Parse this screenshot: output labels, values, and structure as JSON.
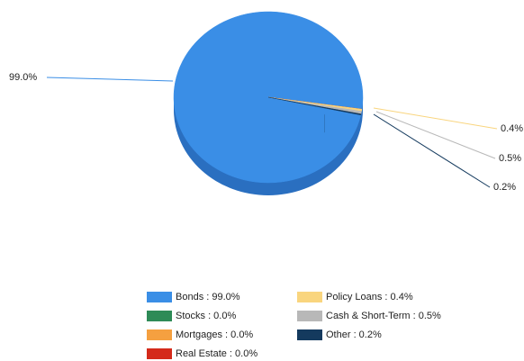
{
  "chart_data": {
    "type": "pie",
    "categories": [
      "Bonds : 99.0%",
      "Stocks : 0.0%",
      "Mortgages : 0.0%",
      "Real Estate : 0.0%",
      "Policy Loans : 0.4%",
      "Cash & Short-Term : 0.5%",
      "Other : 0.2%"
    ],
    "values": [
      99.0,
      0.0,
      0.0,
      0.0,
      0.4,
      0.5,
      0.2
    ],
    "value_labels": [
      "99.0%",
      null,
      null,
      null,
      "0.4%",
      "0.5%",
      "0.2%"
    ],
    "colors": [
      "#3a8ee6",
      "#2e8b57",
      "#f5a040",
      "#d42a1a",
      "#f9d57e",
      "#b8b8b8",
      "#143a5e"
    ],
    "legend": "bottom"
  }
}
